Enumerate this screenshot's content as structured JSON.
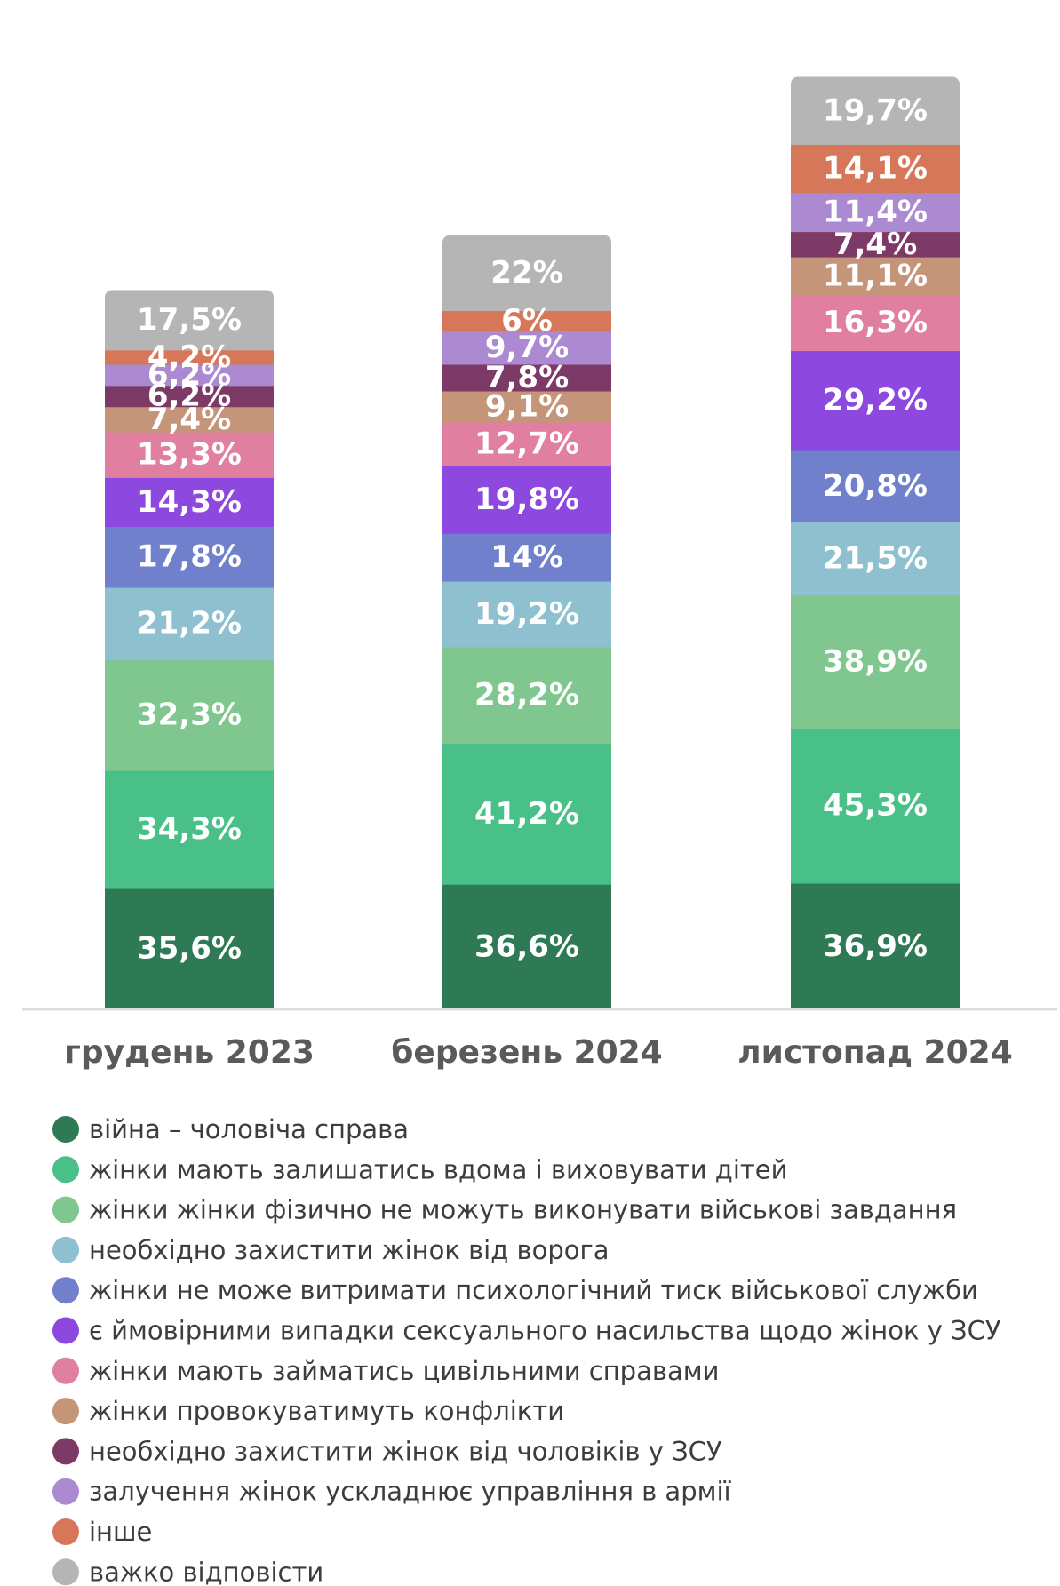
{
  "chart_data": {
    "type": "bar",
    "stacked": true,
    "categories": [
      "грудень 2023",
      "березень 2024",
      "листопад 2024"
    ],
    "series": [
      {
        "name": "війна – чоловіча справа",
        "color": "#2e7a54",
        "values": [
          35.6,
          36.6,
          36.9
        ],
        "labels": [
          "35,6%",
          "36,6%",
          "36,9%"
        ]
      },
      {
        "name": "жінки мають залишатись вдома і виховувати дітей",
        "color": "#48c088",
        "values": [
          34.3,
          41.2,
          45.3
        ],
        "labels": [
          "34,3%",
          "41,2%",
          "45,3%"
        ]
      },
      {
        "name": "жінки жінки фізично не можуть виконувати військові завдання",
        "color": "#7fc78f",
        "values": [
          32.3,
          28.2,
          38.9
        ],
        "labels": [
          "32,3%",
          "28,2%",
          "38,9%"
        ]
      },
      {
        "name": "необхідно захистити жінок від ворога",
        "color": "#8fc0d0",
        "values": [
          21.2,
          19.2,
          21.5
        ],
        "labels": [
          "21,2%",
          "19,2%",
          "21,5%"
        ]
      },
      {
        "name": "жінки не може витримати психологічний тиск військової служби",
        "color": "#7180cc",
        "values": [
          17.8,
          14,
          20.8
        ],
        "labels": [
          "17,8%",
          "14%",
          "20,8%"
        ]
      },
      {
        "name": "є ймовірними випадки сексуального насильства щодо жінок у ЗСУ",
        "color": "#8c48df",
        "values": [
          14.3,
          19.8,
          29.2
        ],
        "labels": [
          "14,3%",
          "19,8%",
          "29,2%"
        ]
      },
      {
        "name": "жінки мають займатись цивільними справами",
        "color": "#e17fa1",
        "values": [
          13.3,
          12.7,
          16.3
        ],
        "labels": [
          "13,3%",
          "12,7%",
          "16,3%"
        ]
      },
      {
        "name": "жінки провокуватимуть конфлікти",
        "color": "#c5957a",
        "values": [
          7.4,
          9.1,
          11.1
        ],
        "labels": [
          "7,4%",
          "9,1%",
          "11,1%"
        ]
      },
      {
        "name": "необхідно захистити жінок від чоловіків у ЗСУ",
        "color": "#7e3a66",
        "values": [
          6.2,
          7.8,
          7.4
        ],
        "labels": [
          "6,2%",
          "7,8%",
          "7,4%"
        ]
      },
      {
        "name": "залучення жінок ускладнює управління в армії",
        "color": "#ab8ad1",
        "values": [
          6.2,
          9.7,
          11.4
        ],
        "labels": [
          "6,2%",
          "9,7%",
          "11,4%"
        ]
      },
      {
        "name": "інше",
        "color": "#d7775a",
        "values": [
          4.2,
          6,
          14.1
        ],
        "labels": [
          "4,2%",
          "6%",
          "14,1%"
        ]
      },
      {
        "name": "важко відповісти",
        "color": "#b5b5b5",
        "values": [
          17.5,
          22,
          19.7
        ],
        "labels": [
          "17,5%",
          "22%",
          "19,7%"
        ]
      }
    ],
    "legend_position": "bottom",
    "grid": false,
    "value_axis_visible": false
  }
}
